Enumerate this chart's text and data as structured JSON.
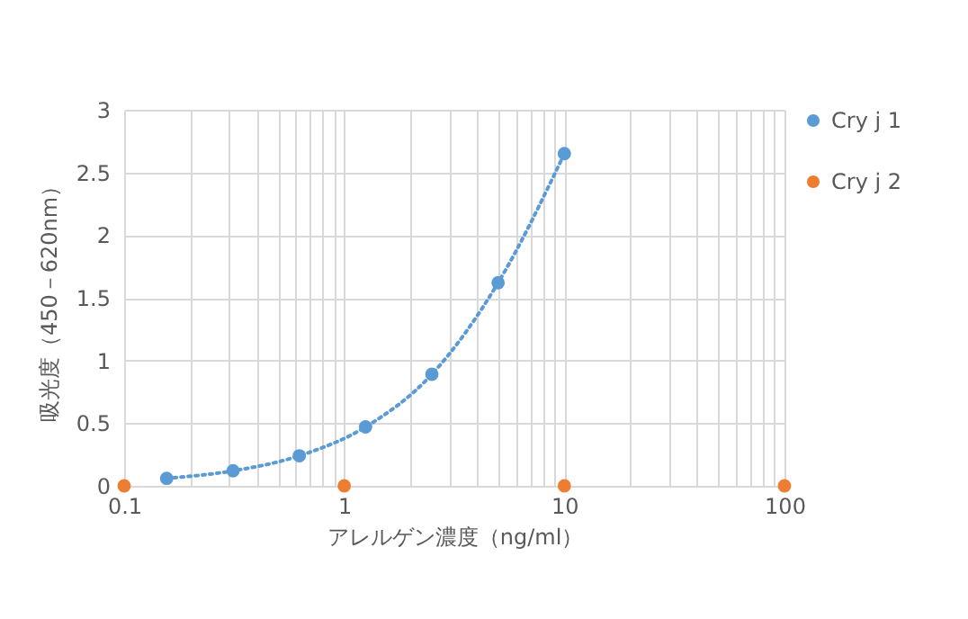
{
  "chart_data": {
    "type": "scatter",
    "xlabel": "アレルゲン濃度（ng/ml）",
    "ylabel": "吸光度（450－620nm）",
    "log": "x",
    "xlim": [
      0.1,
      100
    ],
    "xticks": [
      0.1,
      {
        "value": 0.2,
        "label": null
      },
      {
        "value": 0.3,
        "label": null
      },
      {
        "value": 0.4,
        "label": null
      },
      {
        "value": 0.5,
        "label": null
      },
      {
        "value": 0.6,
        "label": null
      },
      {
        "value": 0.7,
        "label": null
      },
      {
        "value": 0.8,
        "label": null
      },
      {
        "value": 0.9,
        "label": null
      },
      1,
      {
        "value": 2,
        "label": null
      },
      {
        "value": 3,
        "label": null
      },
      {
        "value": 4,
        "label": null
      },
      {
        "value": 5,
        "label": null
      },
      {
        "value": 6,
        "label": null
      },
      {
        "value": 7,
        "label": null
      },
      {
        "value": 8,
        "label": null
      },
      {
        "value": 9,
        "label": null
      },
      10,
      {
        "value": 20,
        "label": null
      },
      {
        "value": 30,
        "label": null
      },
      {
        "value": 40,
        "label": null
      },
      {
        "value": 50,
        "label": null
      },
      {
        "value": 60,
        "label": null
      },
      {
        "value": 70,
        "label": null
      },
      {
        "value": 80,
        "label": null
      },
      {
        "value": 90,
        "label": null
      },
      100
    ],
    "ylim": [
      0,
      3
    ],
    "yticks": [
      0,
      0.5,
      1,
      1.5,
      2,
      2.5,
      3
    ],
    "grid": true,
    "legend": "right",
    "marker": "circle",
    "series": [
      {
        "name": "Cry j 1",
        "color": "#5b9bd5",
        "x": [
          0.156,
          0.3125,
          0.625,
          1.25,
          2.5,
          5,
          10
        ],
        "values": [
          0.06,
          0.12,
          0.24,
          0.47,
          0.89,
          1.62,
          2.65
        ]
      },
      {
        "name": "Cry j 2",
        "color": "#ed7d31",
        "x": [
          0.1,
          1,
          10,
          100
        ],
        "values": [
          0,
          0,
          0,
          0
        ]
      },
      {
        "type": "line",
        "line_style": "dotted",
        "marker": "none",
        "color": "#5b9bd5",
        "x": [
          0.156,
          0.3125,
          0.625,
          1.25,
          2.5,
          5,
          10
        ],
        "values": [
          0.06,
          0.12,
          0.24,
          0.47,
          0.89,
          1.62,
          2.65
        ]
      }
    ]
  }
}
